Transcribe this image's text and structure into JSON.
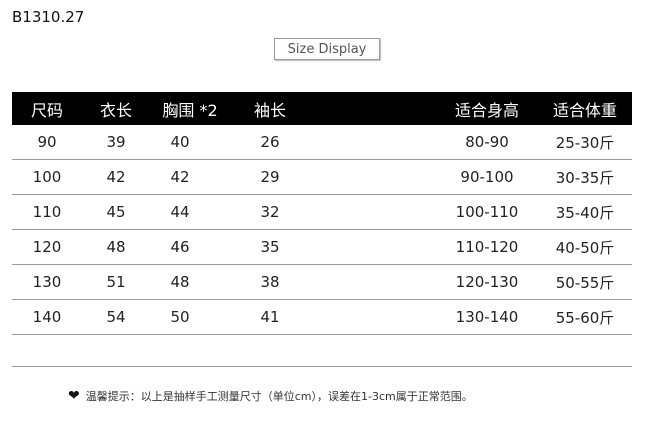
{
  "product_code": "B1310.27",
  "size_display_label": "Size Display",
  "table": {
    "headers": [
      "尺码",
      "衣长",
      "胸围 *2",
      "袖长",
      "适合身高",
      "适合体重"
    ],
    "rows": [
      [
        "90",
        "39",
        "40",
        "26",
        "80-90",
        "25-30斤"
      ],
      [
        "100",
        "42",
        "42",
        "29",
        "90-100",
        "30-35斤"
      ],
      [
        "110",
        "45",
        "44",
        "32",
        "100-110",
        "35-40斤"
      ],
      [
        "120",
        "48",
        "46",
        "35",
        "110-120",
        "40-50斤"
      ],
      [
        "130",
        "51",
        "48",
        "38",
        "120-130",
        "50-55斤"
      ],
      [
        "140",
        "54",
        "50",
        "41",
        "130-140",
        "55-60斤"
      ]
    ]
  },
  "note": {
    "icon": "heart-icon",
    "text": "温馨提示：以上是抽样手工测量尺寸（单位cm），误差在1-3cm属于正常范围。"
  }
}
